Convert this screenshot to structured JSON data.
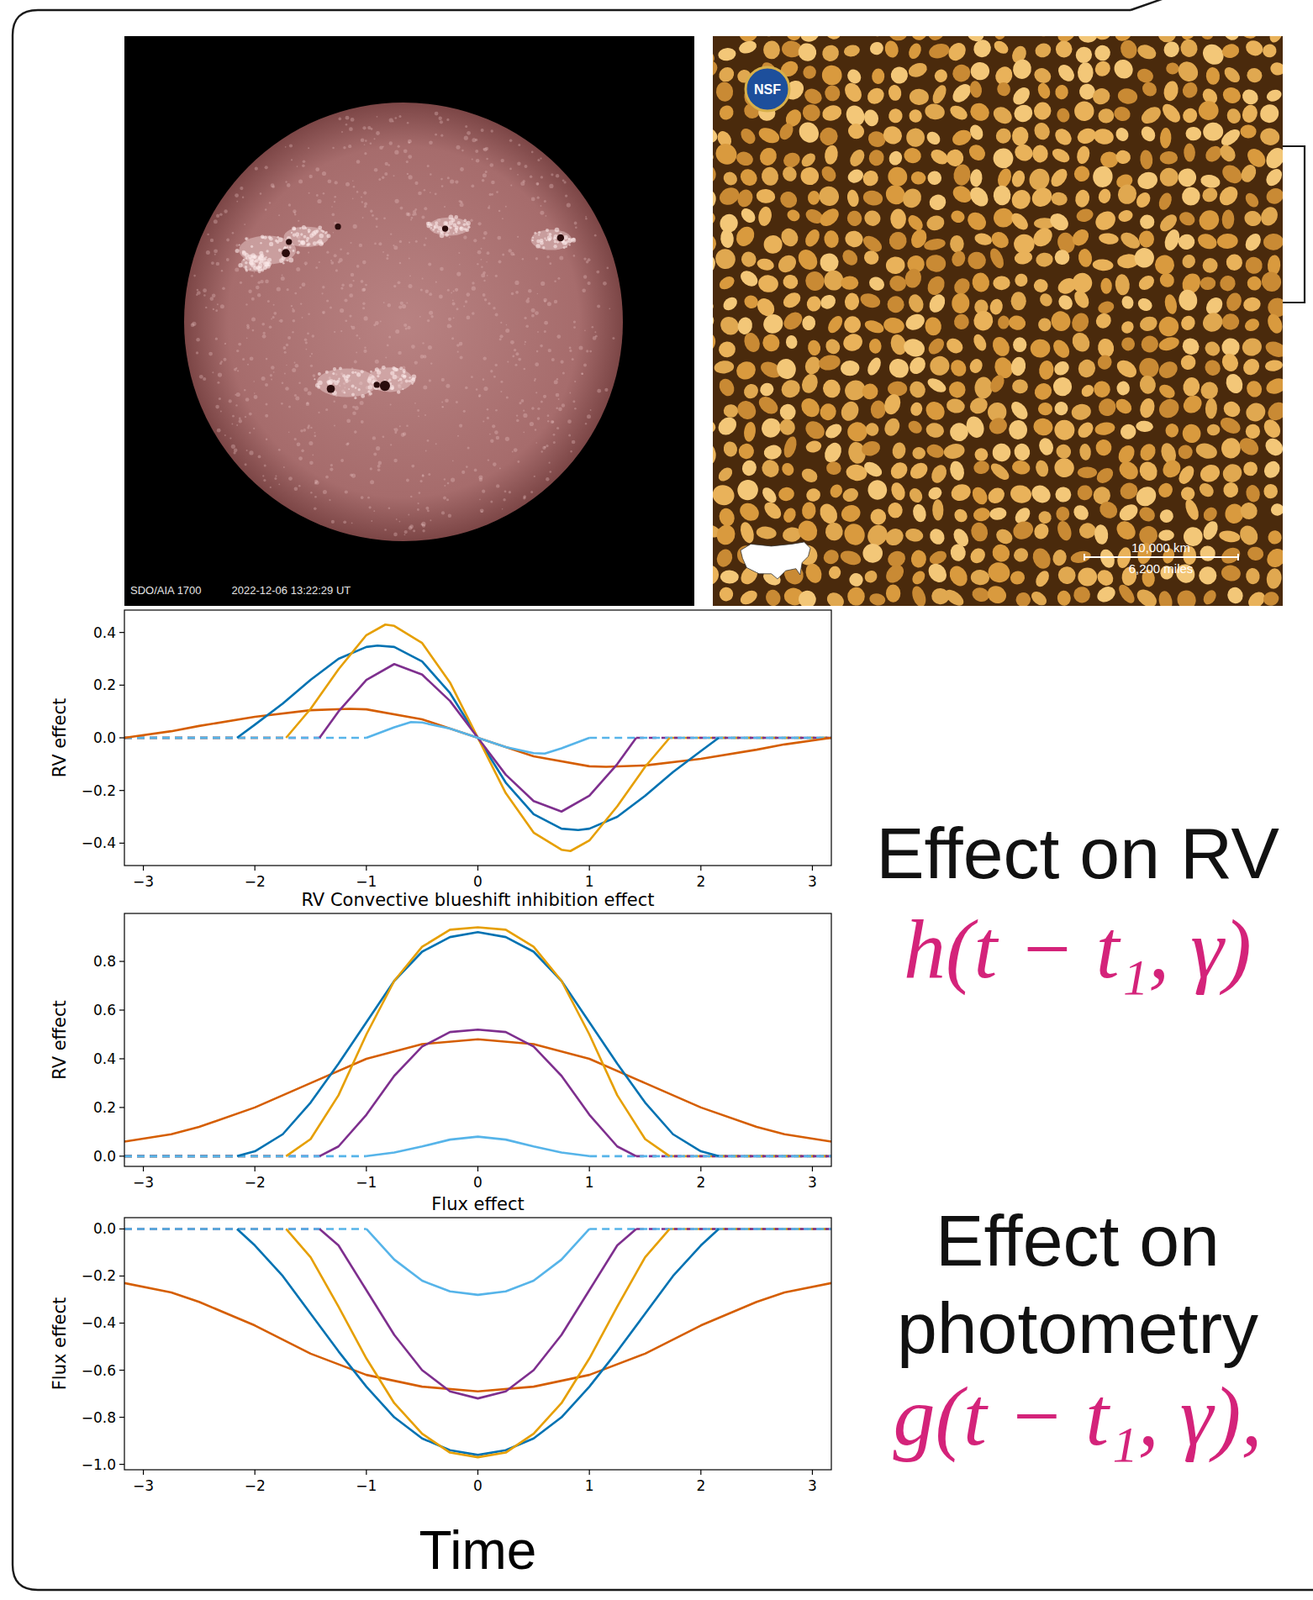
{
  "chart_data": [
    {
      "type": "line",
      "y_label": "RV effect",
      "xlim": [
        -3.17,
        3.17
      ],
      "ylim": [
        -0.485,
        0.485
      ],
      "grid": false,
      "xticks": [
        {
          "value": -3,
          "label": "−3"
        },
        {
          "value": -2,
          "label": "−2"
        },
        {
          "value": -1,
          "label": "−1"
        },
        0,
        1,
        2,
        3
      ],
      "yticks": [
        {
          "value": -0.4,
          "label": "−0.4"
        },
        {
          "value": -0.2,
          "label": "−0.2"
        },
        {
          "value": 0,
          "label": "0.0"
        },
        0.2,
        0.4
      ],
      "series": [
        {
          "color": "#0072B2",
          "line_style": "dashed",
          "x": [
            -3.17,
            -2.16,
            0,
            2.16,
            3.17
          ],
          "values": [
            0,
            0,
            null,
            0,
            0
          ]
        },
        {
          "color": "#E69F00",
          "line_style": "dashed",
          "x": [
            -3.17,
            -1.72,
            0,
            1.72,
            3.17
          ],
          "values": [
            0,
            0,
            null,
            0,
            0
          ]
        },
        {
          "color": "#7E2F8E",
          "line_style": "dashed",
          "x": [
            -3.17,
            -1.42,
            0,
            1.42,
            3.17
          ],
          "values": [
            0,
            0,
            null,
            0,
            0
          ]
        },
        {
          "color": "#56B4E9",
          "line_style": "dashed",
          "x": [
            -3.17,
            -1,
            0,
            1,
            3.17
          ],
          "values": [
            0,
            0,
            null,
            0,
            0
          ]
        },
        {
          "color": "#D55E00",
          "line_style": "solid",
          "x": [
            -3.17,
            -2.75,
            -2.5,
            -2,
            -1.5,
            -1.15,
            -1,
            -0.5,
            0,
            0.5,
            1,
            1.15,
            1.5,
            2,
            2.5,
            2.75,
            3.17
          ],
          "values": [
            0,
            0.025,
            0.045,
            0.08,
            0.105,
            0.11,
            0.108,
            0.07,
            0,
            -0.07,
            -0.108,
            -0.11,
            -0.105,
            -0.08,
            -0.045,
            -0.025,
            0
          ]
        },
        {
          "color": "#0072B2",
          "line_style": "solid",
          "x": [
            -2.16,
            -2,
            -1.75,
            -1.5,
            -1.25,
            -1,
            -0.9,
            -0.75,
            -0.5,
            -0.25,
            0,
            0.25,
            0.5,
            0.75,
            0.9,
            1,
            1.25,
            1.5,
            1.75,
            2,
            2.16
          ],
          "values": [
            0,
            0.05,
            0.13,
            0.22,
            0.3,
            0.345,
            0.35,
            0.345,
            0.29,
            0.17,
            0,
            -0.17,
            -0.29,
            -0.345,
            -0.35,
            -0.345,
            -0.3,
            -0.22,
            -0.13,
            -0.05,
            0
          ]
        },
        {
          "color": "#E69F00",
          "line_style": "solid",
          "x": [
            -1.72,
            -1.5,
            -1.25,
            -1,
            -0.83,
            -0.75,
            -0.5,
            -0.25,
            0,
            0.25,
            0.5,
            0.75,
            0.83,
            1,
            1.25,
            1.5,
            1.72
          ],
          "values": [
            0,
            0.11,
            0.26,
            0.39,
            0.43,
            0.425,
            0.36,
            0.21,
            0,
            -0.21,
            -0.36,
            -0.425,
            -0.43,
            -0.39,
            -0.26,
            -0.11,
            0
          ]
        },
        {
          "color": "#7E2F8E",
          "line_style": "solid",
          "x": [
            -1.42,
            -1.25,
            -1,
            -0.75,
            -0.5,
            -0.25,
            0,
            0.25,
            0.5,
            0.75,
            1,
            1.25,
            1.42
          ],
          "values": [
            0,
            0.1,
            0.22,
            0.28,
            0.24,
            0.14,
            0,
            -0.14,
            -0.24,
            -0.28,
            -0.22,
            -0.1,
            0
          ]
        },
        {
          "color": "#56B4E9",
          "line_style": "solid",
          "x": [
            -1,
            -0.75,
            -0.6,
            -0.5,
            -0.25,
            0,
            0.25,
            0.5,
            0.6,
            0.75,
            1
          ],
          "values": [
            0,
            0.04,
            0.06,
            0.058,
            0.035,
            0,
            -0.035,
            -0.058,
            -0.06,
            -0.04,
            0
          ]
        }
      ]
    },
    {
      "type": "line",
      "title": "RV Convective blueshift inhibition effect",
      "y_label": "RV effect",
      "xlim": [
        -3.17,
        3.17
      ],
      "ylim": [
        -0.042,
        0.997
      ],
      "grid": false,
      "xticks": [
        {
          "value": -3,
          "label": "−3"
        },
        {
          "value": -2,
          "label": "−2"
        },
        {
          "value": -1,
          "label": "−1"
        },
        0,
        1,
        2,
        3
      ],
      "yticks": [
        {
          "value": 0,
          "label": "0.0"
        },
        0.2,
        0.4,
        0.6,
        0.8
      ],
      "series": [
        {
          "color": "#0072B2",
          "line_style": "dashed",
          "x": [
            -3.17,
            -2.16,
            0,
            2.16,
            3.17
          ],
          "values": [
            0,
            0,
            null,
            0,
            0
          ]
        },
        {
          "color": "#E69F00",
          "line_style": "dashed",
          "x": [
            -3.17,
            -1.72,
            0,
            1.72,
            3.17
          ],
          "values": [
            0,
            0,
            null,
            0,
            0
          ]
        },
        {
          "color": "#7E2F8E",
          "line_style": "dashed",
          "x": [
            -3.17,
            -1.42,
            0,
            1.42,
            3.17
          ],
          "values": [
            0,
            0,
            null,
            0,
            0
          ]
        },
        {
          "color": "#56B4E9",
          "line_style": "dashed",
          "x": [
            -3.17,
            -1,
            0,
            1,
            3.17
          ],
          "values": [
            0,
            0,
            null,
            0,
            0
          ]
        },
        {
          "color": "#D55E00",
          "line_style": "solid",
          "x": [
            -3.17,
            -2.75,
            -2.5,
            -2,
            -1.5,
            -1,
            -0.5,
            0,
            0.5,
            1,
            1.5,
            2,
            2.5,
            2.75,
            3.17
          ],
          "values": [
            0.06,
            0.09,
            0.12,
            0.2,
            0.3,
            0.4,
            0.46,
            0.48,
            0.46,
            0.4,
            0.3,
            0.2,
            0.12,
            0.09,
            0.06
          ]
        },
        {
          "color": "#0072B2",
          "line_style": "solid",
          "x": [
            -2.16,
            -2,
            -1.75,
            -1.5,
            -1.25,
            -1,
            -0.75,
            -0.5,
            -0.25,
            0,
            0.25,
            0.5,
            0.75,
            1,
            1.25,
            1.5,
            1.75,
            2,
            2.16
          ],
          "values": [
            0,
            0.02,
            0.09,
            0.22,
            0.38,
            0.55,
            0.72,
            0.84,
            0.9,
            0.92,
            0.9,
            0.84,
            0.72,
            0.55,
            0.38,
            0.22,
            0.09,
            0.02,
            0
          ]
        },
        {
          "color": "#E69F00",
          "line_style": "solid",
          "x": [
            -1.72,
            -1.5,
            -1.25,
            -1,
            -0.75,
            -0.5,
            -0.25,
            0,
            0.25,
            0.5,
            0.75,
            1,
            1.25,
            1.5,
            1.72
          ],
          "values": [
            0,
            0.07,
            0.25,
            0.5,
            0.72,
            0.86,
            0.93,
            0.94,
            0.93,
            0.86,
            0.72,
            0.5,
            0.25,
            0.07,
            0
          ]
        },
        {
          "color": "#7E2F8E",
          "line_style": "solid",
          "x": [
            -1.42,
            -1.25,
            -1,
            -0.75,
            -0.5,
            -0.25,
            0,
            0.25,
            0.5,
            0.75,
            1,
            1.25,
            1.42
          ],
          "values": [
            0,
            0.04,
            0.17,
            0.33,
            0.45,
            0.51,
            0.52,
            0.51,
            0.45,
            0.33,
            0.17,
            0.04,
            0
          ]
        },
        {
          "color": "#56B4E9",
          "line_style": "solid",
          "x": [
            -1,
            -0.75,
            -0.5,
            -0.25,
            0,
            0.25,
            0.5,
            0.75,
            1
          ],
          "values": [
            0,
            0.015,
            0.04,
            0.068,
            0.08,
            0.068,
            0.04,
            0.015,
            0
          ]
        }
      ]
    },
    {
      "type": "line",
      "title": "Flux effect",
      "y_label": "Flux effect",
      "x_label": "Time",
      "xlim": [
        -3.17,
        3.17
      ],
      "ylim": [
        -1.023,
        0.048
      ],
      "grid": false,
      "xticks": [
        {
          "value": -3,
          "label": "−3"
        },
        {
          "value": -2,
          "label": "−2"
        },
        {
          "value": -1,
          "label": "−1"
        },
        0,
        1,
        2,
        3
      ],
      "yticks": [
        {
          "value": -1,
          "label": "−1.0"
        },
        {
          "value": -0.8,
          "label": "−0.8"
        },
        {
          "value": -0.6,
          "label": "−0.6"
        },
        {
          "value": -0.4,
          "label": "−0.4"
        },
        {
          "value": -0.2,
          "label": "−0.2"
        },
        {
          "value": 0,
          "label": "0.0"
        }
      ],
      "series": [
        {
          "color": "#0072B2",
          "line_style": "dashed",
          "x": [
            -3.17,
            -2.16,
            0,
            2.16,
            3.17
          ],
          "values": [
            0,
            0,
            null,
            0,
            0
          ]
        },
        {
          "color": "#E69F00",
          "line_style": "dashed",
          "x": [
            -3.17,
            -1.72,
            0,
            1.72,
            3.17
          ],
          "values": [
            0,
            0,
            null,
            0,
            0
          ]
        },
        {
          "color": "#7E2F8E",
          "line_style": "dashed",
          "x": [
            -3.17,
            -1.42,
            0,
            1.42,
            3.17
          ],
          "values": [
            0,
            0,
            null,
            0,
            0
          ]
        },
        {
          "color": "#56B4E9",
          "line_style": "dashed",
          "x": [
            -3.17,
            -1,
            0,
            1,
            3.17
          ],
          "values": [
            0,
            0,
            null,
            0,
            0
          ]
        },
        {
          "color": "#D55E00",
          "line_style": "solid",
          "x": [
            -3.17,
            -2.75,
            -2.5,
            -2,
            -1.5,
            -1,
            -0.5,
            0,
            0.5,
            1,
            1.5,
            2,
            2.5,
            2.75,
            3.17
          ],
          "values": [
            -0.23,
            -0.27,
            -0.31,
            -0.41,
            -0.53,
            -0.62,
            -0.67,
            -0.69,
            -0.67,
            -0.62,
            -0.53,
            -0.41,
            -0.31,
            -0.27,
            -0.23
          ]
        },
        {
          "color": "#0072B2",
          "line_style": "solid",
          "x": [
            -2.16,
            -2,
            -1.75,
            -1.5,
            -1.25,
            -1,
            -0.75,
            -0.5,
            -0.25,
            0,
            0.25,
            0.5,
            0.75,
            1,
            1.25,
            1.5,
            1.75,
            2,
            2.16
          ],
          "values": [
            0,
            -0.07,
            -0.2,
            -0.36,
            -0.52,
            -0.67,
            -0.8,
            -0.89,
            -0.94,
            -0.96,
            -0.94,
            -0.89,
            -0.8,
            -0.67,
            -0.52,
            -0.36,
            -0.2,
            -0.07,
            0
          ]
        },
        {
          "color": "#E69F00",
          "line_style": "solid",
          "x": [
            -1.72,
            -1.5,
            -1.25,
            -1,
            -0.75,
            -0.5,
            -0.25,
            0,
            0.25,
            0.5,
            0.75,
            1,
            1.25,
            1.5,
            1.72
          ],
          "values": [
            0,
            -0.12,
            -0.33,
            -0.55,
            -0.74,
            -0.87,
            -0.95,
            -0.97,
            -0.95,
            -0.87,
            -0.74,
            -0.55,
            -0.33,
            -0.12,
            0
          ]
        },
        {
          "color": "#7E2F8E",
          "line_style": "solid",
          "x": [
            -1.42,
            -1.25,
            -1,
            -0.75,
            -0.5,
            -0.25,
            0,
            0.25,
            0.5,
            0.75,
            1,
            1.25,
            1.42
          ],
          "values": [
            0,
            -0.07,
            -0.26,
            -0.45,
            -0.6,
            -0.69,
            -0.72,
            -0.69,
            -0.6,
            -0.45,
            -0.26,
            -0.07,
            0
          ]
        },
        {
          "color": "#56B4E9",
          "line_style": "solid",
          "x": [
            -1,
            -0.75,
            -0.5,
            -0.25,
            0,
            0.25,
            0.5,
            0.75,
            1
          ],
          "values": [
            0,
            -0.13,
            -0.22,
            -0.265,
            -0.28,
            -0.265,
            -0.22,
            -0.13,
            0
          ]
        }
      ]
    }
  ],
  "panels": {
    "sun_image": {
      "instrument": "SDO/AIA 1700",
      "timestamp": "2022-12-06 13:22:29 UT"
    },
    "granulation_image": {
      "logo": "NSF",
      "scale_bar": [
        "10,000 km",
        "6,200 miles"
      ]
    },
    "captions": {
      "rv_heading": "Effect on RV",
      "rv_function": "h(t − t₁, γ)",
      "photometry_heading": "Effect on photometry",
      "photometry_function": "g(t − t₁, γ),"
    }
  }
}
